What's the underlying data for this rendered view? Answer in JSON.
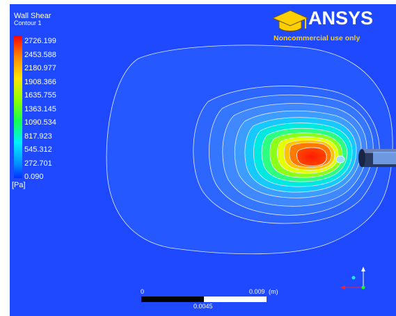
{
  "legend": {
    "title": "Wall Shear",
    "subtitle": "Contour 1",
    "unit": "[Pa]",
    "levels": [
      "2726.199",
      "2453.588",
      "2180.977",
      "1908.366",
      "1635.755",
      "1363.145",
      "1090.534",
      "817.923",
      "545.312",
      "272.701",
      "0.090"
    ],
    "colors": [
      "#ff0000",
      "#ff4a00",
      "#ff9000",
      "#ffd200",
      "#d2ff00",
      "#80ff00",
      "#28ff34",
      "#00ff9b",
      "#00e6ff",
      "#0091ff",
      "#0037ff"
    ]
  },
  "logo": {
    "wordmark": "ANSYS",
    "note": "Noncommercial use only"
  },
  "scale": {
    "left_value": "0",
    "right_value": "0.009",
    "unit": "(m)",
    "mid_value": "0.0045"
  },
  "colors": {
    "background": "#1f49ff",
    "accent": "#ffd000"
  }
}
